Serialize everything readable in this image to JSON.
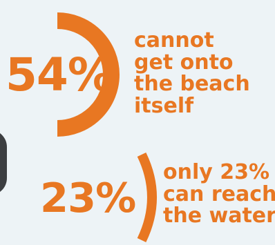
{
  "chart_data": [
    {
      "type": "arc",
      "value": 54,
      "label": "54%",
      "caption_lines": [
        "cannot",
        "get onto",
        "the beach",
        "itself"
      ]
    },
    {
      "type": "arc",
      "value": 23,
      "label": "23%",
      "caption_lines": [
        "only 23%",
        "can reach",
        "the water"
      ]
    }
  ],
  "colors": {
    "accent": "#e87722",
    "background": "#edf3f6",
    "dark_shape": "#2d2f31"
  }
}
